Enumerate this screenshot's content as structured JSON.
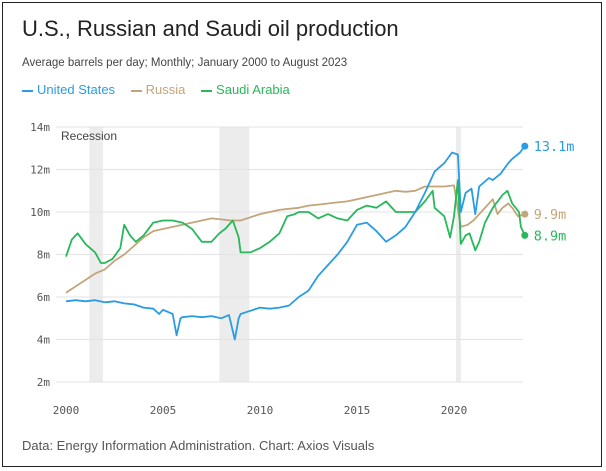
{
  "header": {
    "title": "U.S., Russian and Saudi oil production",
    "subtitle": "Average barrels per day; Monthly; January 2000 to August 2023"
  },
  "footer": {
    "source": "Data: Energy Information Administration. Chart: Axios Visuals"
  },
  "chart_data": {
    "type": "line",
    "ylim": [
      2,
      14
    ],
    "xlim": [
      2000,
      2023.7
    ],
    "y_ticks": [
      {
        "value": 2,
        "label": "2m"
      },
      {
        "value": 4,
        "label": "4m"
      },
      {
        "value": 6,
        "label": "6m"
      },
      {
        "value": 8,
        "label": "8m"
      },
      {
        "value": 10,
        "label": "10m"
      },
      {
        "value": 12,
        "label": "12m"
      },
      {
        "value": 14,
        "label": "14m"
      }
    ],
    "x_ticks": [
      {
        "value": 2000,
        "label": "2000"
      },
      {
        "value": 2005,
        "label": "2005"
      },
      {
        "value": 2010,
        "label": "2010"
      },
      {
        "value": 2015,
        "label": "2015"
      },
      {
        "value": 2020,
        "label": "2020"
      }
    ],
    "grid": true,
    "legend_position": "top-left",
    "recession_label": "Recession",
    "recessions": [
      [
        2001.2,
        2001.9
      ],
      [
        2007.9,
        2009.45
      ],
      [
        2020.1,
        2020.35
      ]
    ],
    "colors": {
      "us": "#2a9ce4",
      "russia": "#c3a57a",
      "saudi": "#27b85a",
      "recession": "#ececec",
      "grid": "#e3e3e3"
    },
    "series": [
      {
        "key": "us",
        "name": "United States",
        "end_label": "13.1m",
        "points": [
          [
            2000,
            5.8
          ],
          [
            2000.5,
            5.85
          ],
          [
            2001,
            5.8
          ],
          [
            2001.5,
            5.85
          ],
          [
            2002,
            5.75
          ],
          [
            2002.5,
            5.8
          ],
          [
            2003,
            5.7
          ],
          [
            2003.5,
            5.65
          ],
          [
            2004,
            5.5
          ],
          [
            2004.5,
            5.45
          ],
          [
            2004.8,
            5.2
          ],
          [
            2005,
            5.4
          ],
          [
            2005.5,
            5.2
          ],
          [
            2005.7,
            4.2
          ],
          [
            2005.9,
            5.0
          ],
          [
            2006,
            5.05
          ],
          [
            2006.5,
            5.1
          ],
          [
            2007,
            5.05
          ],
          [
            2007.5,
            5.1
          ],
          [
            2008,
            5.0
          ],
          [
            2008.4,
            5.15
          ],
          [
            2008.7,
            4.0
          ],
          [
            2008.9,
            5.0
          ],
          [
            2009,
            5.2
          ],
          [
            2009.5,
            5.35
          ],
          [
            2010,
            5.5
          ],
          [
            2010.5,
            5.45
          ],
          [
            2011,
            5.5
          ],
          [
            2011.5,
            5.6
          ],
          [
            2012,
            6.0
          ],
          [
            2012.5,
            6.3
          ],
          [
            2013,
            7.0
          ],
          [
            2013.5,
            7.5
          ],
          [
            2014,
            8.0
          ],
          [
            2014.5,
            8.6
          ],
          [
            2015,
            9.4
          ],
          [
            2015.5,
            9.5
          ],
          [
            2016,
            9.1
          ],
          [
            2016.5,
            8.6
          ],
          [
            2017,
            8.9
          ],
          [
            2017.5,
            9.3
          ],
          [
            2018,
            10.0
          ],
          [
            2018.5,
            10.9
          ],
          [
            2019,
            11.9
          ],
          [
            2019.5,
            12.3
          ],
          [
            2019.9,
            12.8
          ],
          [
            2020.2,
            12.7
          ],
          [
            2020.35,
            10.0
          ],
          [
            2020.6,
            10.9
          ],
          [
            2020.9,
            11.1
          ],
          [
            2021.1,
            9.9
          ],
          [
            2021.3,
            11.2
          ],
          [
            2021.8,
            11.6
          ],
          [
            2022,
            11.5
          ],
          [
            2022.4,
            11.8
          ],
          [
            2022.8,
            12.3
          ],
          [
            2023,
            12.5
          ],
          [
            2023.4,
            12.8
          ],
          [
            2023.65,
            13.1
          ]
        ]
      },
      {
        "key": "russia",
        "name": "Russia",
        "end_label": "9.9m",
        "points": [
          [
            2000,
            6.2
          ],
          [
            2000.5,
            6.5
          ],
          [
            2001,
            6.8
          ],
          [
            2001.5,
            7.1
          ],
          [
            2002,
            7.3
          ],
          [
            2002.5,
            7.7
          ],
          [
            2003,
            8.0
          ],
          [
            2003.5,
            8.4
          ],
          [
            2004,
            8.8
          ],
          [
            2004.5,
            9.1
          ],
          [
            2005,
            9.2
          ],
          [
            2005.5,
            9.3
          ],
          [
            2006,
            9.4
          ],
          [
            2006.5,
            9.5
          ],
          [
            2007,
            9.6
          ],
          [
            2007.5,
            9.7
          ],
          [
            2008,
            9.65
          ],
          [
            2008.5,
            9.6
          ],
          [
            2009,
            9.6
          ],
          [
            2009.5,
            9.75
          ],
          [
            2010,
            9.9
          ],
          [
            2010.5,
            10.0
          ],
          [
            2011,
            10.1
          ],
          [
            2011.5,
            10.15
          ],
          [
            2012,
            10.2
          ],
          [
            2012.5,
            10.3
          ],
          [
            2013,
            10.35
          ],
          [
            2013.5,
            10.4
          ],
          [
            2014,
            10.45
          ],
          [
            2014.5,
            10.5
          ],
          [
            2015,
            10.6
          ],
          [
            2015.5,
            10.7
          ],
          [
            2016,
            10.8
          ],
          [
            2016.5,
            10.9
          ],
          [
            2017,
            11.0
          ],
          [
            2017.5,
            10.95
          ],
          [
            2018,
            11.0
          ],
          [
            2018.5,
            11.2
          ],
          [
            2019,
            11.2
          ],
          [
            2019.5,
            11.2
          ],
          [
            2020,
            11.25
          ],
          [
            2020.35,
            9.3
          ],
          [
            2020.7,
            9.4
          ],
          [
            2021,
            9.6
          ],
          [
            2021.5,
            10.1
          ],
          [
            2022,
            10.6
          ],
          [
            2022.25,
            9.9
          ],
          [
            2022.5,
            10.2
          ],
          [
            2022.8,
            10.4
          ],
          [
            2023,
            10.2
          ],
          [
            2023.3,
            9.8
          ],
          [
            2023.65,
            9.9
          ]
        ]
      },
      {
        "key": "saudi",
        "name": "Saudi Arabia",
        "end_label": "8.9m",
        "points": [
          [
            2000,
            7.9
          ],
          [
            2000.3,
            8.7
          ],
          [
            2000.6,
            9.0
          ],
          [
            2001,
            8.5
          ],
          [
            2001.5,
            8.1
          ],
          [
            2001.8,
            7.6
          ],
          [
            2002,
            7.6
          ],
          [
            2002.4,
            7.8
          ],
          [
            2002.8,
            8.3
          ],
          [
            2003,
            9.4
          ],
          [
            2003.3,
            8.9
          ],
          [
            2003.6,
            8.6
          ],
          [
            2004,
            8.9
          ],
          [
            2004.5,
            9.5
          ],
          [
            2005,
            9.6
          ],
          [
            2005.5,
            9.6
          ],
          [
            2006,
            9.5
          ],
          [
            2006.5,
            9.2
          ],
          [
            2007,
            8.6
          ],
          [
            2007.5,
            8.6
          ],
          [
            2007.9,
            9.0
          ],
          [
            2008.2,
            9.2
          ],
          [
            2008.6,
            9.6
          ],
          [
            2008.9,
            8.8
          ],
          [
            2009,
            8.1
          ],
          [
            2009.5,
            8.1
          ],
          [
            2010,
            8.3
          ],
          [
            2010.5,
            8.6
          ],
          [
            2011,
            9.0
          ],
          [
            2011.4,
            9.8
          ],
          [
            2011.8,
            9.9
          ],
          [
            2012,
            10.0
          ],
          [
            2012.5,
            10.0
          ],
          [
            2013,
            9.7
          ],
          [
            2013.5,
            9.9
          ],
          [
            2014,
            9.7
          ],
          [
            2014.5,
            9.6
          ],
          [
            2015,
            10.1
          ],
          [
            2015.5,
            10.3
          ],
          [
            2016,
            10.2
          ],
          [
            2016.5,
            10.5
          ],
          [
            2017,
            10.0
          ],
          [
            2017.5,
            10.0
          ],
          [
            2018,
            10.0
          ],
          [
            2018.5,
            10.5
          ],
          [
            2018.9,
            11.0
          ],
          [
            2019,
            10.2
          ],
          [
            2019.5,
            9.8
          ],
          [
            2019.8,
            8.8
          ],
          [
            2020,
            9.8
          ],
          [
            2020.2,
            11.5
          ],
          [
            2020.35,
            8.5
          ],
          [
            2020.6,
            8.9
          ],
          [
            2020.8,
            9.0
          ],
          [
            2021.1,
            8.2
          ],
          [
            2021.3,
            8.6
          ],
          [
            2021.6,
            9.5
          ],
          [
            2022,
            10.2
          ],
          [
            2022.5,
            10.8
          ],
          [
            2022.75,
            11.0
          ],
          [
            2023,
            10.4
          ],
          [
            2023.35,
            10.0
          ],
          [
            2023.45,
            9.3
          ],
          [
            2023.65,
            8.9
          ]
        ]
      }
    ]
  }
}
